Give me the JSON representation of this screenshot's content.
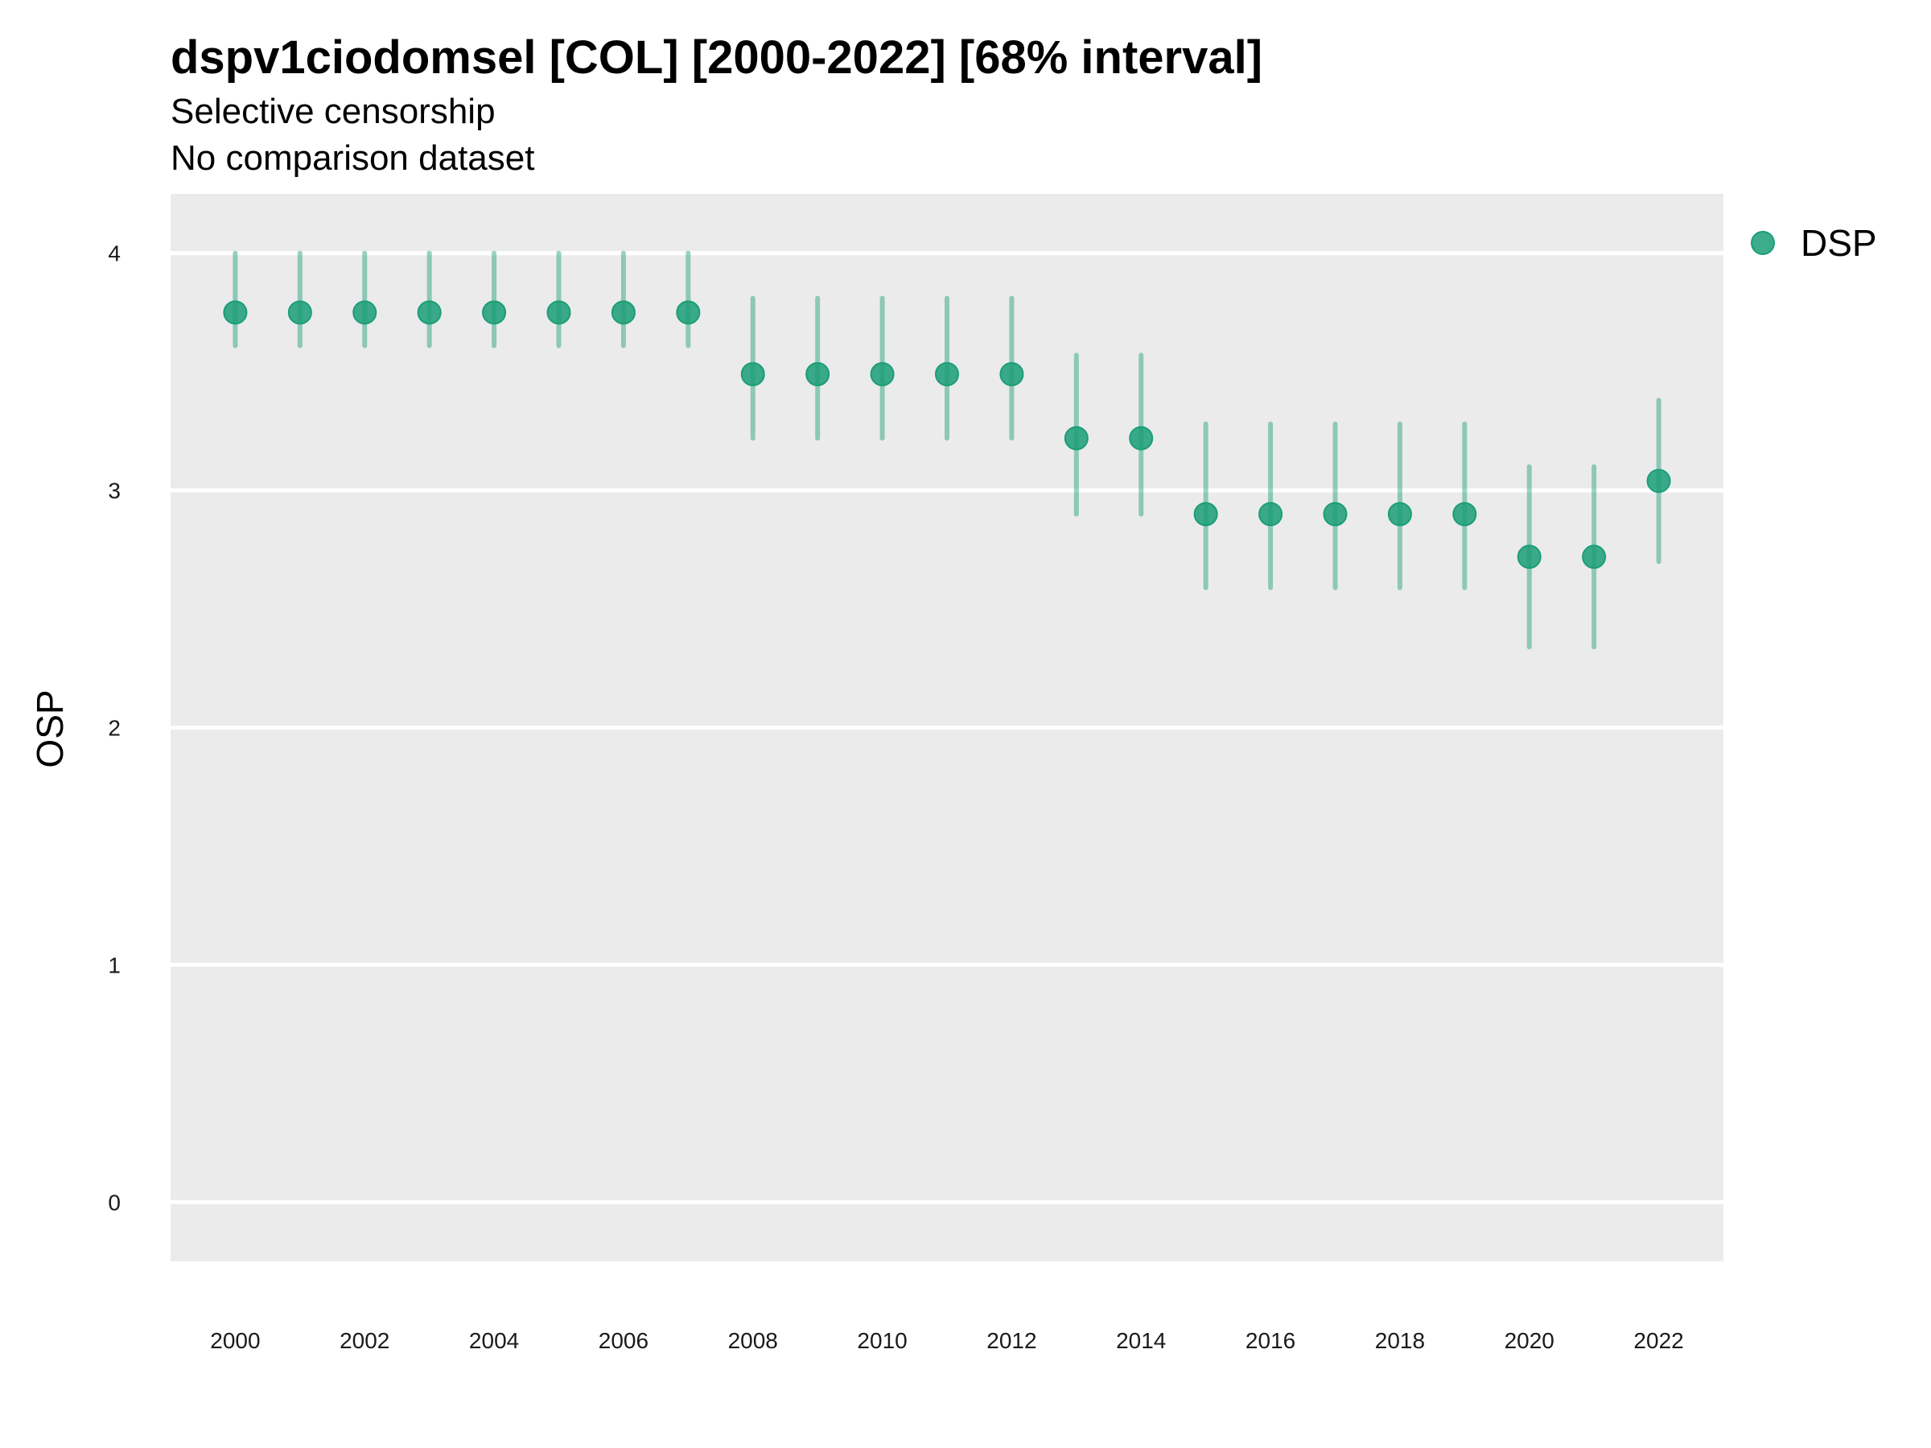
{
  "chart_data": {
    "type": "scatter",
    "title": "dspv1ciodomsel [COL] [2000-2022] [68% interval]",
    "subtitle": [
      "Selective censorship",
      "No comparison dataset"
    ],
    "xlabel": "",
    "ylabel": "OSP",
    "xlim": [
      1999,
      2023
    ],
    "ylim": [
      -0.25,
      4.25
    ],
    "grid": true,
    "legend_position": "right",
    "x_ticks": [
      2000,
      2002,
      2004,
      2006,
      2008,
      2010,
      2012,
      2014,
      2016,
      2018,
      2020,
      2022
    ],
    "y_ticks": [
      0,
      1,
      2,
      3,
      4
    ],
    "colors": {
      "series": "#1b9e77",
      "panel": "#ebebeb",
      "grid": "#ffffff"
    },
    "series": [
      {
        "name": "DSP",
        "x": [
          2000,
          2001,
          2002,
          2003,
          2004,
          2005,
          2006,
          2007,
          2008,
          2009,
          2010,
          2011,
          2012,
          2013,
          2014,
          2015,
          2016,
          2017,
          2018,
          2019,
          2020,
          2021,
          2022
        ],
        "y": [
          3.75,
          3.75,
          3.75,
          3.75,
          3.75,
          3.75,
          3.75,
          3.75,
          3.49,
          3.49,
          3.49,
          3.49,
          3.49,
          3.22,
          3.22,
          2.9,
          2.9,
          2.9,
          2.9,
          2.9,
          2.72,
          2.72,
          3.04
        ],
        "lower": [
          3.61,
          3.61,
          3.61,
          3.61,
          3.61,
          3.61,
          3.61,
          3.61,
          3.22,
          3.22,
          3.22,
          3.22,
          3.22,
          2.9,
          2.9,
          2.59,
          2.59,
          2.59,
          2.59,
          2.59,
          2.34,
          2.34,
          2.7
        ],
        "upper": [
          4.0,
          4.0,
          4.0,
          4.0,
          4.0,
          4.0,
          4.0,
          4.0,
          3.81,
          3.81,
          3.81,
          3.81,
          3.81,
          3.57,
          3.57,
          3.28,
          3.28,
          3.28,
          3.28,
          3.28,
          3.1,
          3.1,
          3.38
        ]
      }
    ]
  }
}
